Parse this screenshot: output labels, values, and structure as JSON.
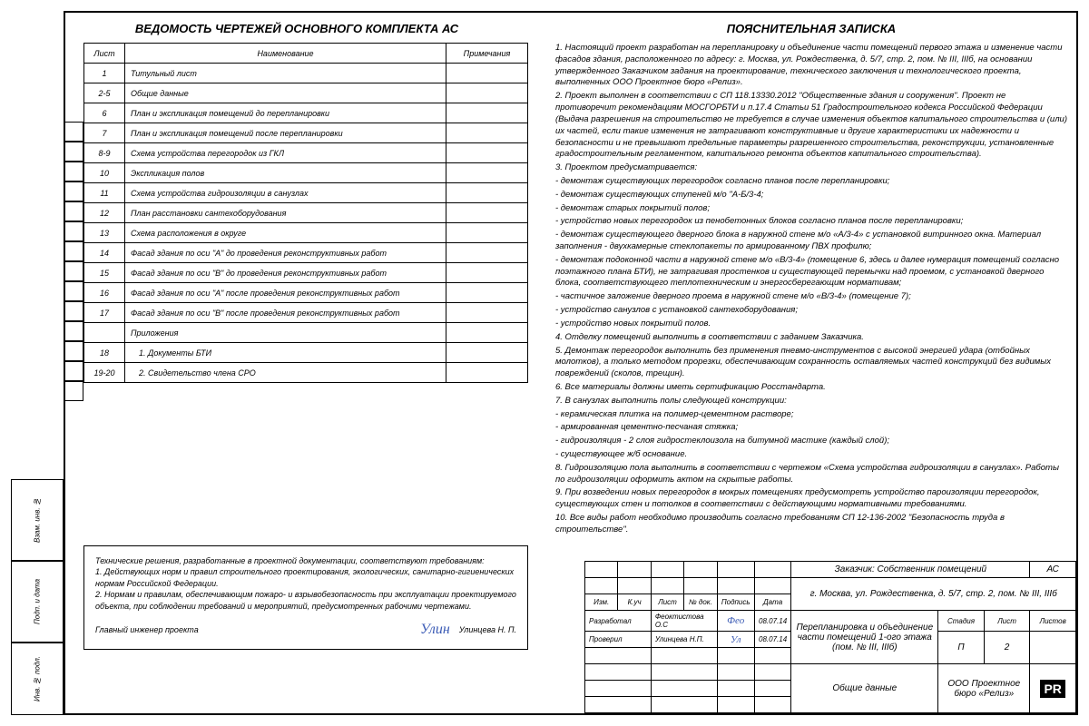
{
  "left_margin": {
    "c1": "Инв. № подл.",
    "c2": "Подп. и дата",
    "c3": "Взам. инв. №",
    "c4": ""
  },
  "drawings": {
    "title": "ВЕДОМОСТЬ ЧЕРТЕЖЕЙ ОСНОВНОГО КОМПЛЕКТА АС",
    "headers": {
      "sheet": "Лист",
      "name": "Наименование",
      "notes": "Примечания"
    },
    "rows": [
      {
        "sheet": "1",
        "name": "Титульный лист"
      },
      {
        "sheet": "2-5",
        "name": "Общие данные"
      },
      {
        "sheet": "6",
        "name": "План и экспликация помещений до перепланировки"
      },
      {
        "sheet": "7",
        "name": "План и экспликация помещений после перепланировки"
      },
      {
        "sheet": "8-9",
        "name": "Схема устройства перегородок из ГКЛ"
      },
      {
        "sheet": "10",
        "name": "Экспликация полов"
      },
      {
        "sheet": "11",
        "name": "Схема устройства гидроизоляции в санузлах"
      },
      {
        "sheet": "12",
        "name": "План расстановки сантехоборудования"
      },
      {
        "sheet": "13",
        "name": "Схема расположения в округе"
      },
      {
        "sheet": "14",
        "name": "Фасад здания по оси \"А\" до проведения реконструктивных работ"
      },
      {
        "sheet": "15",
        "name": "Фасад здания по оси \"В\" до проведения реконструктивных работ"
      },
      {
        "sheet": "16",
        "name": "Фасад здания по оси \"А\" после проведения реконструктивных работ"
      },
      {
        "sheet": "17",
        "name": "Фасад здания по оси \"В\" после проведения реконструктивных работ"
      },
      {
        "sheet": "",
        "name": "Приложения"
      },
      {
        "sheet": "18",
        "name": "1. Документы БТИ",
        "indent": true
      },
      {
        "sheet": "19-20",
        "name": "2. Свидетельство члена СРО",
        "indent": true
      }
    ]
  },
  "tech_note": {
    "l1": "Технические решения, разработанные в проектной документации, соответствуют требованиям:",
    "l2": "1. Действующих норм и правил строительного проектирования, экологических, санитарно-гигиенических нормам Российской Федерации.",
    "l3": "2. Нормам и правилам, обеспечивающим пожаро- и взрывобезопасность при эксплуатации проектируемого объекта, при соблюдении требований и мероприятий, предусмотренных рабочими чертежами.",
    "signer_role": "Главный инженер проекта",
    "signer_name": "Улинцева Н. П.",
    "signature": "Улин"
  },
  "explain": {
    "title": "ПОЯСНИТЕЛЬНАЯ ЗАПИСКА",
    "p1": "1. Настоящий проект разработан на перепланировку и объединение части помещений первого этажа и изменение части фасадов здания, расположенного по адресу: г. Москва, ул. Рождественка, д. 5/7, стр. 2, пом. № III, IIIб, на основании утвержденного Заказчиком задания на проектирование, технического заключения и технологического проекта, выполненных ООО Проектное бюро «Релиз».",
    "p2": "2. Проект выполнен в соответствии с СП 118.13330.2012 \"Общественные здания и сооружения\". Проект не противоречит рекомендациям МОСГОРБТИ и п.17.4 Статьи 51 Градостроительного кодекса Российской Федерации (Выдача разрешения на строительство не требуется в случае изменения объектов капитального строительства и (или) их частей, если такие изменения не затрагивают конструктивные и другие характеристики их надежности и безопасности и не превышают предельные параметры разрешенного строительства, реконструкции, установленные градостроительным регламентом, капитального ремонта объектов капитального строительства).",
    "p3": "3. Проектом предусматривается:",
    "p3a": "- демонтаж существующих перегородок согласно планов после перепланировки;",
    "p3b": "- демонтаж существующих ступеней м/о \"А-Б/3-4;",
    "p3c": "- демонтаж старых покрытий полов;",
    "p3d": "- устройство новых перегородок из пенобетонных блоков согласно планов после перепланировки;",
    "p3e": "- демонтаж существующего дверного блока в наружной стене м/о «А/3-4» с установкой витринного окна. Материал заполнения - двухкамерные стеклопакеты по армированному ПВХ профилю;",
    "p3f": "- демонтаж подоконной части в наружной стене м/о «В/3-4» (помещение 6, здесь и далее нумерация помещений согласно поэтажного плана БТИ), не затрагивая простенков и существующей перемычки над проемом, с установкой дверного блока, соответствующего теплотехническим и энергосберегающим нормативам;",
    "p3g": "- частичное заложение дверного проема в наружной стене м/о «В/3-4» (помещение 7);",
    "p3h": "- устройство санузлов с установкой сантехоборудования;",
    "p3i": "- устройство новых покрытий полов.",
    "p4": "4. Отделку помещений выполнить в соответствии с заданием Заказчика.",
    "p5": "5. Демонтаж перегородок выполнить без применения пневмо-инструментов с высокой энергией удара (отбойных молотков), а только методом прорезки, обеспечивающим сохранность оставляемых частей конструкций без видимых повреждений (сколов, трещин).",
    "p6": "6. Все материалы должны иметь сертификацию Росстандарта.",
    "p7": "7. В санузлах выполнить полы следующей конструкции:",
    "p7a": "- керамическая плитка на полимер-цементном растворе;",
    "p7b": "- армированная цементно-песчаная стяжка;",
    "p7c": "- гидроизоляция - 2 слоя гидростеклоизола на битумной мастике (каждый слой);",
    "p7d": "- существующее ж/б основание.",
    "p8": "8. Гидроизоляцию пола выполнить в соответствии с чертежом «Схема устройства гидроизоляции в санузлах». Работы по гидроизоляции оформить актом на скрытые работы.",
    "p9": "9. При возведении новых перегородок в мокрых помещениях предусмотреть устройство пароизоляции перегородок, существующих стен и потолков в соответствии с действующими нормативными требованиями.",
    "p10": "10. Все виды работ необходимо производить согласно требованиям СП 12-136-2002 \"Безопасность труда в строительстве\"."
  },
  "stamp": {
    "customer_label": "Заказчик: Собственник помещений",
    "code": "АС",
    "address": "г. Москва, ул. Рождественка, д. 5/7, стр. 2, пом. № III, IIIб",
    "headers": {
      "izm": "Изм.",
      "kuch": "К.уч",
      "sheet": "Лист",
      "doc": "№ док.",
      "sign": "Подпись",
      "date": "Дата"
    },
    "dev_label": "Разработал",
    "dev_name": "Феоктистова О.С",
    "dev_date": "08.07.14",
    "check_label": "Проверил",
    "check_name": "Улинцева Н.П.",
    "check_date": "08.07.14",
    "project_title": "Перепланировка и объединение части помещений 1-ого этажа (пом. № III, IIIб)",
    "stage_h": "Стадия",
    "sheet_h": "Лист",
    "sheets_h": "Листов",
    "stage": "П",
    "sheet_num": "2",
    "sheets_total": "",
    "doc_name": "Общие данные",
    "company": "ООО Проектное бюро «Релиз»",
    "logo": "PR"
  }
}
